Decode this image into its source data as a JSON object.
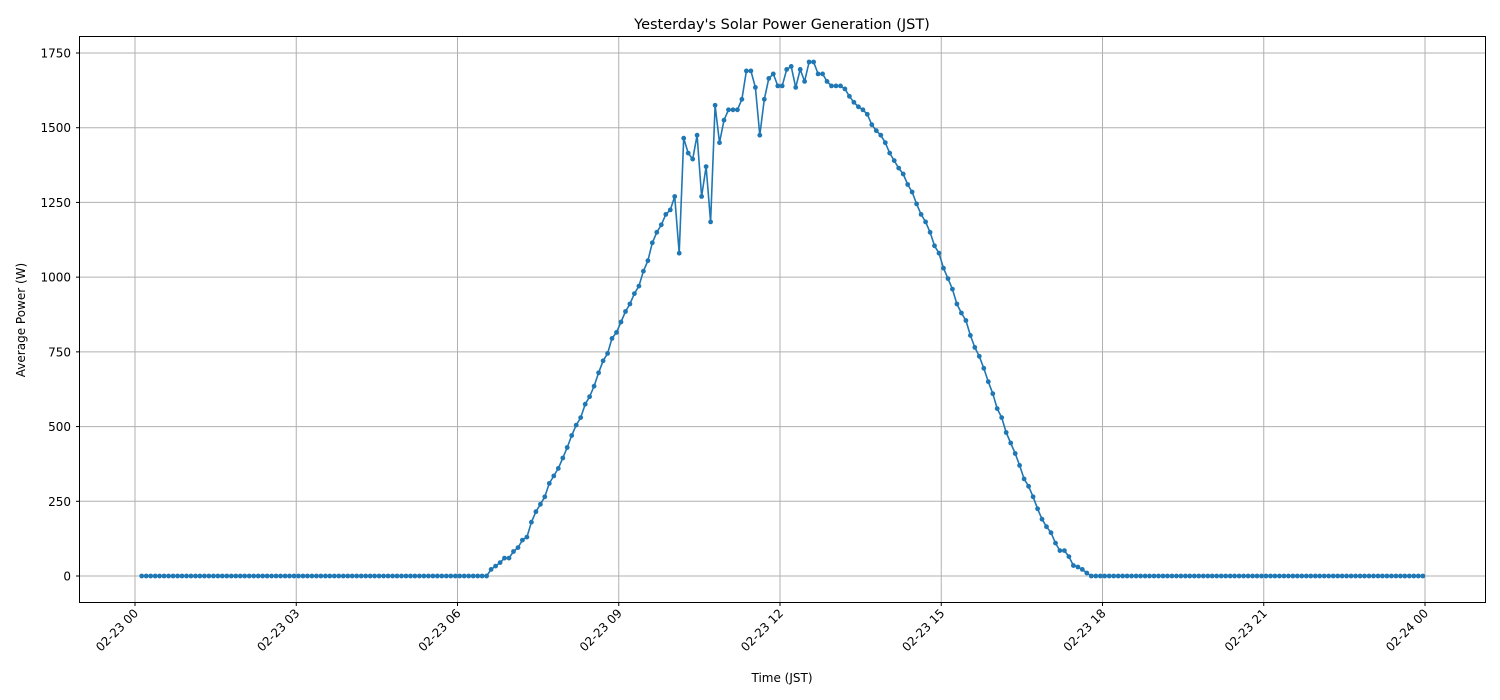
{
  "chart_data": {
    "type": "line",
    "title": "Yesterday's Solar Power Generation (JST)",
    "xlabel": "Time (JST)",
    "ylabel": "Average Power (W)",
    "ylim": [
      -88,
      1800
    ],
    "xlim": [
      "02-22 22:59",
      "02-24 01:10"
    ],
    "grid": true,
    "legend": null,
    "x_ticks": [
      "02-23 00",
      "02-23 03",
      "02-23 06",
      "02-23 09",
      "02-23 12",
      "02-23 15",
      "02-23 18",
      "02-23 21",
      "02-24 00"
    ],
    "y_ticks": [
      0,
      250,
      500,
      750,
      1000,
      1250,
      1500,
      1750
    ],
    "series": [
      {
        "name": "Average Power (W)",
        "color": "#1f77b4",
        "marker": "circle",
        "interval_minutes": 5,
        "start_time": "02-23 00:05",
        "end_time": "02-23 23:55",
        "note": "Zero from 00:05 to ~06:30 and from ~17:45 to 23:55",
        "daytime_points": [
          [
            "06:30",
            0
          ],
          [
            "06:35",
            22
          ],
          [
            "06:40",
            33
          ],
          [
            "06:45",
            45
          ],
          [
            "06:50",
            60
          ],
          [
            "06:55",
            60
          ],
          [
            "07:00",
            82
          ],
          [
            "07:05",
            95
          ],
          [
            "07:10",
            120
          ],
          [
            "07:15",
            130
          ],
          [
            "07:20",
            180
          ],
          [
            "07:25",
            215
          ],
          [
            "07:30",
            240
          ],
          [
            "07:35",
            265
          ],
          [
            "07:40",
            310
          ],
          [
            "07:45",
            335
          ],
          [
            "07:50",
            360
          ],
          [
            "07:55",
            395
          ],
          [
            "08:00",
            430
          ],
          [
            "08:05",
            470
          ],
          [
            "08:10",
            505
          ],
          [
            "08:15",
            530
          ],
          [
            "08:20",
            575
          ],
          [
            "08:25",
            600
          ],
          [
            "08:30",
            635
          ],
          [
            "08:35",
            680
          ],
          [
            "08:40",
            720
          ],
          [
            "08:45",
            745
          ],
          [
            "08:50",
            795
          ],
          [
            "08:55",
            815
          ],
          [
            "09:00",
            850
          ],
          [
            "09:05",
            885
          ],
          [
            "09:10",
            910
          ],
          [
            "09:15",
            945
          ],
          [
            "09:20",
            970
          ],
          [
            "09:25",
            1020
          ],
          [
            "09:30",
            1055
          ],
          [
            "09:35",
            1115
          ],
          [
            "09:40",
            1150
          ],
          [
            "09:45",
            1175
          ],
          [
            "09:50",
            1210
          ],
          [
            "09:55",
            1225
          ],
          [
            "10:00",
            1270
          ],
          [
            "10:05",
            1080
          ],
          [
            "10:10",
            1465
          ],
          [
            "10:15",
            1415
          ],
          [
            "10:20",
            1395
          ],
          [
            "10:25",
            1475
          ],
          [
            "10:30",
            1270
          ],
          [
            "10:35",
            1370
          ],
          [
            "10:40",
            1185
          ],
          [
            "10:45",
            1575
          ],
          [
            "10:50",
            1450
          ],
          [
            "10:55",
            1525
          ],
          [
            "11:00",
            1560
          ],
          [
            "11:05",
            1560
          ],
          [
            "11:10",
            1560
          ],
          [
            "11:15",
            1595
          ],
          [
            "11:20",
            1690
          ],
          [
            "11:25",
            1690
          ],
          [
            "11:30",
            1635
          ],
          [
            "11:35",
            1475
          ],
          [
            "11:40",
            1595
          ],
          [
            "11:45",
            1665
          ],
          [
            "11:50",
            1680
          ],
          [
            "11:55",
            1640
          ],
          [
            "12:00",
            1640
          ],
          [
            "12:05",
            1695
          ],
          [
            "12:10",
            1705
          ],
          [
            "12:15",
            1635
          ],
          [
            "12:20",
            1695
          ],
          [
            "12:25",
            1655
          ],
          [
            "12:30",
            1720
          ],
          [
            "12:35",
            1720
          ],
          [
            "12:40",
            1680
          ],
          [
            "12:45",
            1680
          ],
          [
            "12:50",
            1655
          ],
          [
            "12:55",
            1640
          ],
          [
            "13:00",
            1640
          ],
          [
            "13:05",
            1640
          ],
          [
            "13:10",
            1630
          ],
          [
            "13:15",
            1605
          ],
          [
            "13:20",
            1585
          ],
          [
            "13:25",
            1570
          ],
          [
            "13:30",
            1560
          ],
          [
            "13:35",
            1545
          ],
          [
            "13:40",
            1510
          ],
          [
            "13:45",
            1490
          ],
          [
            "13:50",
            1475
          ],
          [
            "13:55",
            1450
          ],
          [
            "14:00",
            1415
          ],
          [
            "14:05",
            1390
          ],
          [
            "14:10",
            1365
          ],
          [
            "14:15",
            1345
          ],
          [
            "14:20",
            1310
          ],
          [
            "14:25",
            1285
          ],
          [
            "14:30",
            1245
          ],
          [
            "14:35",
            1210
          ],
          [
            "14:40",
            1185
          ],
          [
            "14:45",
            1150
          ],
          [
            "14:50",
            1105
          ],
          [
            "14:55",
            1080
          ],
          [
            "15:00",
            1030
          ],
          [
            "15:05",
            995
          ],
          [
            "15:10",
            960
          ],
          [
            "15:15",
            910
          ],
          [
            "15:20",
            880
          ],
          [
            "15:25",
            855
          ],
          [
            "15:30",
            805
          ],
          [
            "15:35",
            765
          ],
          [
            "15:40",
            735
          ],
          [
            "15:45",
            695
          ],
          [
            "15:50",
            650
          ],
          [
            "15:55",
            610
          ],
          [
            "16:00",
            560
          ],
          [
            "16:05",
            530
          ],
          [
            "16:10",
            480
          ],
          [
            "16:15",
            445
          ],
          [
            "16:20",
            410
          ],
          [
            "16:25",
            370
          ],
          [
            "16:30",
            325
          ],
          [
            "16:35",
            300
          ],
          [
            "16:40",
            265
          ],
          [
            "16:45",
            225
          ],
          [
            "16:50",
            190
          ],
          [
            "16:55",
            165
          ],
          [
            "17:00",
            145
          ],
          [
            "17:05",
            110
          ],
          [
            "17:10",
            85
          ],
          [
            "17:15",
            85
          ],
          [
            "17:20",
            65
          ],
          [
            "17:25",
            35
          ],
          [
            "17:30",
            30
          ],
          [
            "17:35",
            22
          ],
          [
            "17:40",
            10
          ],
          [
            "17:45",
            0
          ]
        ]
      }
    ]
  }
}
